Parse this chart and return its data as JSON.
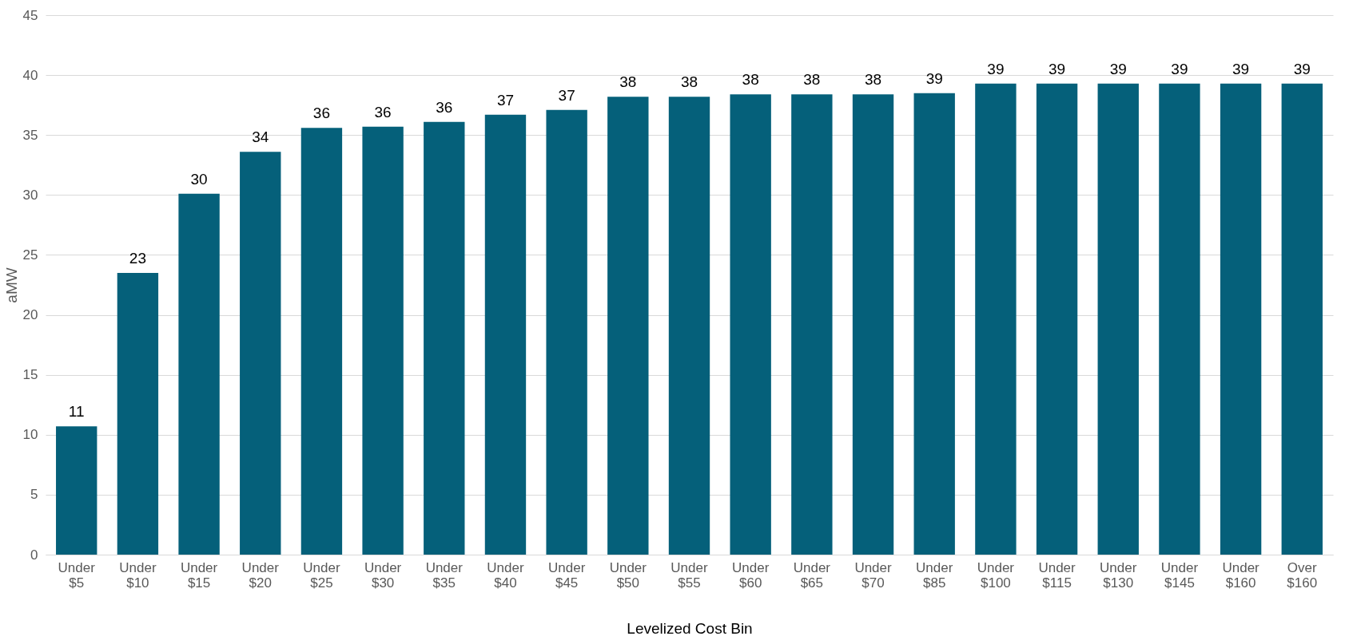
{
  "chart_data": {
    "type": "bar",
    "xlabel": "Levelized Cost Bin",
    "ylabel": "aMW",
    "categories": [
      "Under $5",
      "Under $10",
      "Under $15",
      "Under $20",
      "Under $25",
      "Under $30",
      "Under $35",
      "Under $40",
      "Under $45",
      "Under $50",
      "Under $55",
      "Under $60",
      "Under $65",
      "Under $70",
      "Under $85",
      "Under $100",
      "Under $115",
      "Under $130",
      "Under $145",
      "Under $160",
      "Over $160"
    ],
    "values": [
      10.7,
      23.5,
      30.1,
      33.6,
      35.6,
      35.7,
      36.1,
      36.7,
      37.1,
      38.2,
      38.2,
      38.4,
      38.4,
      38.4,
      38.5,
      39.3,
      39.3,
      39.3,
      39.3,
      39.3,
      39.3
    ],
    "value_labels": [
      "11",
      "23",
      "30",
      "34",
      "36",
      "36",
      "36",
      "37",
      "37",
      "38",
      "38",
      "38",
      "38",
      "38",
      "39",
      "39",
      "39",
      "39",
      "39",
      "39",
      "39"
    ],
    "color": "#05607a",
    "ylim": [
      0,
      45
    ],
    "yticks": [
      0,
      5,
      10,
      15,
      20,
      25,
      30,
      35,
      40,
      45
    ],
    "grid": "y"
  }
}
